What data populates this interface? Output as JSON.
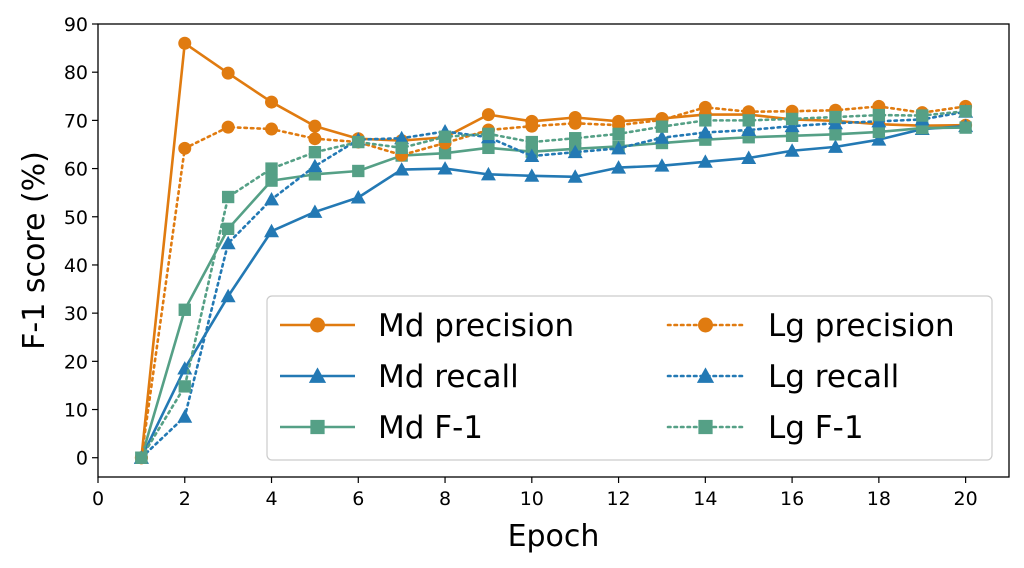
{
  "chart_data": {
    "type": "line",
    "xlabel": "Epoch",
    "ylabel": "F-1 score (%)",
    "xlim": [
      0,
      21
    ],
    "ylim": [
      -4,
      90
    ],
    "xticks": [
      0,
      2,
      4,
      6,
      8,
      10,
      12,
      14,
      16,
      18,
      20
    ],
    "yticks": [
      0,
      10,
      20,
      30,
      40,
      50,
      60,
      70,
      80,
      90
    ],
    "grid": false,
    "legend_position": "lower-right",
    "x": [
      1,
      2,
      3,
      4,
      5,
      6,
      7,
      8,
      9,
      10,
      11,
      12,
      13,
      14,
      15,
      16,
      17,
      18,
      19,
      20
    ],
    "series": [
      {
        "name": "Md precision",
        "color": "#E07B10",
        "linestyle": "solid",
        "marker": "circle",
        "values": [
          0,
          86,
          79.8,
          73.8,
          68.8,
          66.2,
          65.8,
          66.5,
          71.2,
          69.8,
          70.6,
          69.8,
          70.4,
          71.2,
          71.2,
          70.2,
          69.9,
          69.2,
          68.9,
          69.0
        ]
      },
      {
        "name": "Md recall",
        "color": "#2379B4",
        "linestyle": "solid",
        "marker": "triangle",
        "values": [
          0,
          18.5,
          33.5,
          47.0,
          51.0,
          54.0,
          59.8,
          60.0,
          58.8,
          58.5,
          58.3,
          60.2,
          60.6,
          61.4,
          62.2,
          63.7,
          64.5,
          66.0,
          68.2,
          68.8
        ]
      },
      {
        "name": "Md F-1",
        "color": "#55A086",
        "linestyle": "solid",
        "marker": "square",
        "values": [
          0,
          30.7,
          47.5,
          57.5,
          58.8,
          59.5,
          62.7,
          63.2,
          64.3,
          63.5,
          64.1,
          64.6,
          65.3,
          66.0,
          66.5,
          66.8,
          67.1,
          67.6,
          68.4,
          68.5
        ]
      },
      {
        "name": "Lg precision",
        "color": "#E07B10",
        "linestyle": "dotted",
        "marker": "circle",
        "values": [
          0,
          64.2,
          68.6,
          68.2,
          66.2,
          65.5,
          62.8,
          65.3,
          68.0,
          68.8,
          69.4,
          69.0,
          70.1,
          72.7,
          71.8,
          71.9,
          72.1,
          72.9,
          71.6,
          72.9
        ]
      },
      {
        "name": "Lg recall",
        "color": "#2379B4",
        "linestyle": "dotted",
        "marker": "triangle",
        "values": [
          0,
          8.5,
          44.5,
          53.6,
          60.5,
          66.0,
          66.3,
          67.7,
          66.5,
          62.6,
          63.4,
          64.2,
          66.4,
          67.5,
          68.0,
          68.8,
          69.4,
          69.8,
          70.2,
          71.8
        ]
      },
      {
        "name": "Lg F-1",
        "color": "#55A086",
        "linestyle": "dotted",
        "marker": "square",
        "values": [
          0,
          14.8,
          54.1,
          60.0,
          63.4,
          65.5,
          64.3,
          66.6,
          67.2,
          65.5,
          66.3,
          67.2,
          68.7,
          70.0,
          70.0,
          70.3,
          70.7,
          71.1,
          71.0,
          71.9
        ]
      }
    ]
  }
}
